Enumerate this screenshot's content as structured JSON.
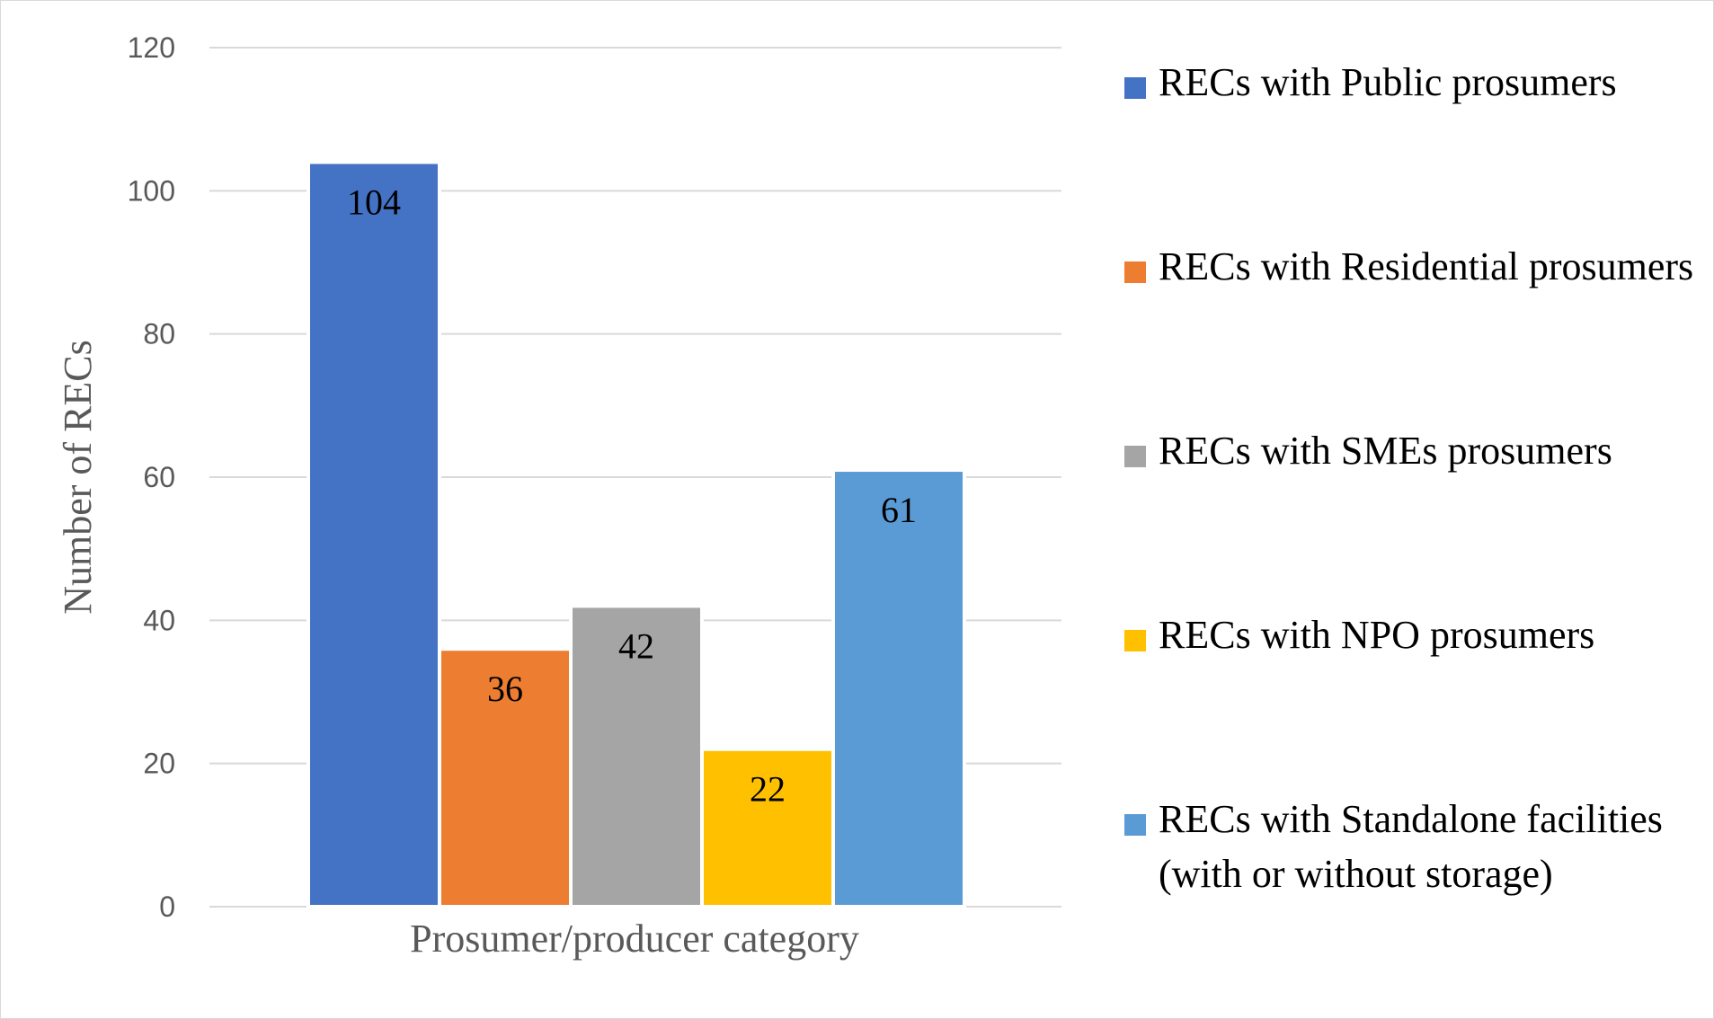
{
  "chart_data": {
    "type": "bar",
    "title": "",
    "xlabel": "Prosumer/producer category",
    "ylabel": "Number of RECs",
    "ylim": [
      0,
      120
    ],
    "yticks": [
      0,
      20,
      40,
      60,
      80,
      100,
      120
    ],
    "grid": true,
    "legend_position": "right",
    "categories": [
      "Prosumer/producer category"
    ],
    "series": [
      {
        "name": "RECs with Public prosumers",
        "values": [
          104
        ],
        "color": "#4472C4"
      },
      {
        "name": "RECs with Residential prosumers",
        "values": [
          36
        ],
        "color": "#ED7D31"
      },
      {
        "name": "RECs with SMEs prosumers",
        "values": [
          42
        ],
        "color": "#A5A5A5"
      },
      {
        "name": "RECs with NPO prosumers",
        "values": [
          22
        ],
        "color": "#FFC000"
      },
      {
        "name": "RECs with Standalone facilities (with or without storage)",
        "values": [
          61
        ],
        "color": "#5B9BD5"
      }
    ]
  }
}
